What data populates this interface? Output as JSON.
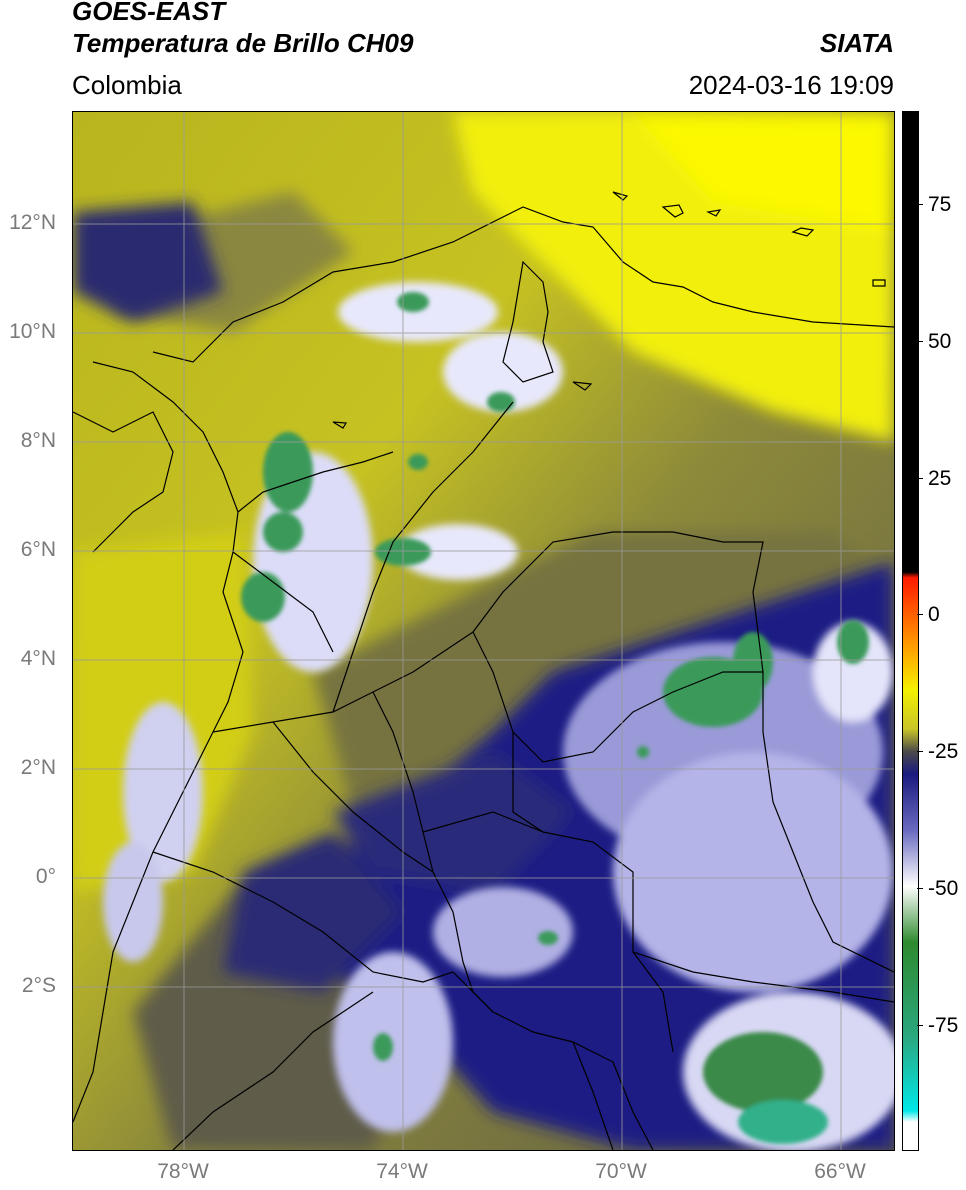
{
  "header": {
    "satellite": "GOES-EAST",
    "product": "Temperatura de Brillo CH09",
    "region": "Colombia",
    "organization": "SIATA",
    "timestamp": "2024-03-16 19:09"
  },
  "map": {
    "lat_ticks": [
      "12°N",
      "10°N",
      "8°N",
      "6°N",
      "4°N",
      "2°N",
      "0°",
      "2°S"
    ],
    "lon_ticks": [
      "78°W",
      "74°W",
      "70°W",
      "66°W"
    ],
    "extent": {
      "lon_min": -80,
      "lon_max": -65,
      "lat_min": -5,
      "lat_max": 14
    }
  },
  "colorbar": {
    "ticks": [
      "75",
      "50",
      "25",
      "0",
      "-25",
      "-50",
      "-75"
    ],
    "range": [
      -95,
      90
    ],
    "stops": [
      {
        "value": 90,
        "color": "#000000"
      },
      {
        "value": 8,
        "color": "#000000"
      },
      {
        "value": 7,
        "color": "#ff1a00"
      },
      {
        "value": -5,
        "color": "#ff9a00"
      },
      {
        "value": -13,
        "color": "#f4f000"
      },
      {
        "value": -20,
        "color": "#c8c428"
      },
      {
        "value": -24,
        "color": "#4a4a4a"
      },
      {
        "value": -28,
        "color": "#1a1a80"
      },
      {
        "value": -38,
        "color": "#6a6ac0"
      },
      {
        "value": -48,
        "color": "#ffffff"
      },
      {
        "value": -58,
        "color": "#2e8a2e"
      },
      {
        "value": -75,
        "color": "#2aa880"
      },
      {
        "value": -88,
        "color": "#00e8e8"
      },
      {
        "value": -90,
        "color": "#ffffff"
      },
      {
        "value": -95,
        "color": "#ffffff"
      }
    ]
  }
}
